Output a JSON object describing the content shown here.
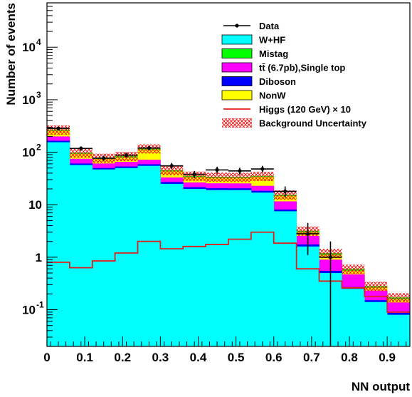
{
  "chart_data": {
    "type": "bar",
    "stacked": true,
    "ylabel": "Number of events",
    "xlabel": "NN output",
    "xlim": [
      0,
      0.96
    ],
    "ylim": [
      0.02,
      70000
    ],
    "y_scale": "log",
    "legend_position": "top-right",
    "bin_edges": [
      0.0,
      0.06,
      0.12,
      0.18,
      0.24,
      0.3,
      0.36,
      0.42,
      0.48,
      0.54,
      0.6,
      0.66,
      0.72,
      0.78,
      0.84,
      0.9,
      0.96
    ],
    "x_ticks": [
      {
        "value": 0,
        "label": "0"
      },
      {
        "value": 0.1,
        "label": "0.1"
      },
      {
        "value": 0.2,
        "label": "0.2"
      },
      {
        "value": 0.3,
        "label": "0.3"
      },
      {
        "value": 0.4,
        "label": "0.4"
      },
      {
        "value": 0.5,
        "label": "0.5"
      },
      {
        "value": 0.6,
        "label": "0.6"
      },
      {
        "value": 0.7,
        "label": "0.7"
      },
      {
        "value": 0.8,
        "label": "0.8"
      },
      {
        "value": 0.9,
        "label": "0.9"
      }
    ],
    "y_ticks": [
      {
        "value": 0.1,
        "base": "10",
        "exp": "-1"
      },
      {
        "value": 1,
        "base": "1",
        "exp": ""
      },
      {
        "value": 10,
        "base": "10",
        "exp": ""
      },
      {
        "value": 100,
        "base": "10",
        "exp": "2"
      },
      {
        "value": 1000,
        "base": "10",
        "exp": "3"
      },
      {
        "value": 10000,
        "base": "10",
        "exp": "4"
      }
    ],
    "stack_series": [
      {
        "name": "W+HF",
        "color": "#00ffff",
        "values": [
          155,
          57,
          47,
          50,
          55,
          25,
          20,
          19,
          19,
          17,
          7.5,
          1.6,
          0.5,
          0.25,
          0.14,
          0.08
        ]
      },
      {
        "name": "Diboson",
        "color": "#0000ff",
        "values": [
          10,
          4,
          3,
          3.5,
          4,
          2,
          1.6,
          1.6,
          1.5,
          1.4,
          0.6,
          0.15,
          0.05,
          0.02,
          0.012,
          0.007
        ]
      },
      {
        "name": "tt̄ (6.7pb),Single top",
        "color": "#ff00ff",
        "values": [
          35,
          14,
          11,
          12,
          13,
          6,
          5,
          5,
          5,
          4.5,
          3.5,
          0.8,
          0.35,
          0.2,
          0.08,
          0.05
        ]
      },
      {
        "name": "NonW",
        "color": "#ffff00",
        "values": [
          55,
          18,
          13,
          14,
          40,
          10,
          7,
          6.5,
          6.5,
          11,
          3,
          0.4,
          0.2,
          0.08,
          0.03,
          0.02
        ]
      },
      {
        "name": "Mistag",
        "color": "#00ff00",
        "values": [
          15,
          5,
          4,
          5,
          6,
          2.5,
          2,
          2,
          1.8,
          1.5,
          1,
          0.25,
          0.1,
          0.05,
          0.02,
          0.015
        ]
      }
    ],
    "uncertainty_band": {
      "name": "Background Uncertainty",
      "color": "#ff0000",
      "fraction": 0.2
    },
    "higgs": {
      "name": "Higgs (120 GeV)",
      "scale_label": "×",
      "scale_factor": "10",
      "color": "#e0201b",
      "values": [
        0.8,
        0.63,
        0.85,
        1.2,
        2.0,
        1.45,
        1.6,
        1.75,
        2.2,
        3.0,
        1.85,
        0.6,
        0.35,
        0.26,
        0.18,
        0.09
      ]
    },
    "data": {
      "name": "Data",
      "x": [
        0.03,
        0.09,
        0.15,
        0.21,
        0.27,
        0.33,
        0.39,
        0.45,
        0.51,
        0.57,
        0.63,
        0.69,
        0.75
      ],
      "y": [
        285,
        118,
        77,
        88,
        120,
        55,
        38,
        46,
        44,
        48,
        18,
        2.8,
        1.0
      ],
      "err_low": [
        17,
        11,
        9,
        9,
        11,
        7.5,
        6,
        7,
        6.5,
        7,
        4.3,
        1.7,
        1.0
      ],
      "err_high": [
        17,
        11,
        9,
        9,
        11,
        7.5,
        6,
        7,
        6.5,
        7,
        4.3,
        1.7,
        1.0
      ]
    }
  }
}
